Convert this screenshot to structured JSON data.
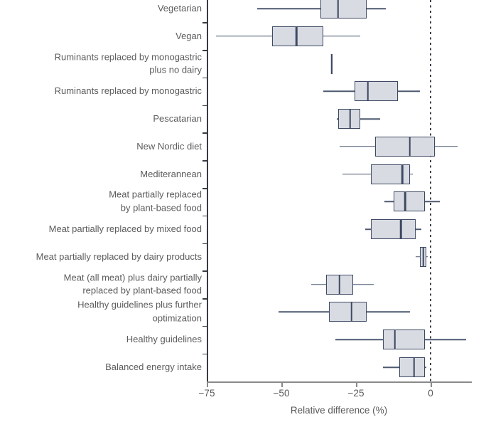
{
  "chart_data": {
    "type": "boxplot",
    "orientation": "horizontal",
    "title": "",
    "xlabel": "Relative difference (%)",
    "ylabel": "",
    "xlim": [
      -75,
      14
    ],
    "grid": false,
    "reference_line_x": 0,
    "x_ticks": [
      {
        "value": -75,
        "label": "−75"
      },
      {
        "value": -50,
        "label": "−50"
      },
      {
        "value": -25,
        "label": "−25"
      },
      {
        "value": 0,
        "label": "0"
      }
    ],
    "series": [
      {
        "label": "Vegetarian",
        "whisker_low": -58,
        "q1": -37,
        "median": -31,
        "q3": -21.5,
        "whisker_high": -15
      },
      {
        "label": "Vegan",
        "whisker_low": -72,
        "q1": -53,
        "median": -45,
        "q3": -36,
        "whisker_high": -23.5
      },
      {
        "label": "Ruminants replaced by monogastric\nplus no dairy",
        "whisker_low": -33.3,
        "q1": -33.3,
        "median": -33.1,
        "q3": -32.9,
        "whisker_high": -32.9
      },
      {
        "label": "Ruminants replaced by monogastric",
        "whisker_low": -36,
        "q1": -25.5,
        "median": -21,
        "q3": -11,
        "whisker_high": -3.5
      },
      {
        "label": "Pescatarian",
        "whisker_low": -31.5,
        "q1": -31,
        "median": -27,
        "q3": -23.5,
        "whisker_high": -17
      },
      {
        "label": "New Nordic diet",
        "whisker_low": -30.5,
        "q1": -18.5,
        "median": -7,
        "q3": 1.5,
        "whisker_high": 9
      },
      {
        "label": "Mediterannean",
        "whisker_low": -29.5,
        "q1": -20,
        "median": -9.5,
        "q3": -7,
        "whisker_high": -6
      },
      {
        "label": "Meat partially replaced\nby plant-based food",
        "whisker_low": -15.5,
        "q1": -12.5,
        "median": -8.5,
        "q3": -2,
        "whisker_high": 3
      },
      {
        "label": "Meat partially replaced by mixed food",
        "whisker_low": -22,
        "q1": -20,
        "median": -10,
        "q3": -5,
        "whisker_high": -3
      },
      {
        "label": "Meat partially replaced by dairy products",
        "whisker_low": -5,
        "q1": -3.5,
        "median": -2.5,
        "q3": -1.5,
        "whisker_high": -1
      },
      {
        "label": "Meat (all meat) plus dairy partially\nreplaced by plant-based food",
        "whisker_low": -40,
        "q1": -35,
        "median": -30.5,
        "q3": -26,
        "whisker_high": -19
      },
      {
        "label": "Healthy guidelines plus further\noptimization",
        "whisker_low": -51,
        "q1": -34,
        "median": -26.5,
        "q3": -21.5,
        "whisker_high": -7
      },
      {
        "label": "Healthy guidelines",
        "whisker_low": -32,
        "q1": -16,
        "median": -12,
        "q3": -2,
        "whisker_high": 12
      },
      {
        "label": "Balanced energy intake",
        "whisker_low": -16,
        "q1": -10.5,
        "median": -5.5,
        "q3": -2,
        "whisker_high": -1.5
      }
    ]
  },
  "style": {
    "box_fill": "#d9dbe3",
    "box_border": "#3e4a63",
    "median_color": "#3e4a63",
    "whisker_color": "#4d5970",
    "zero_line_color": "#3a3f46",
    "y_axis_color": "#383c42",
    "x_axis_color": "#8a8a8a",
    "tick_label_color": "#595959",
    "category_label_color": "#5c5c5c",
    "background": "#ffffff"
  }
}
